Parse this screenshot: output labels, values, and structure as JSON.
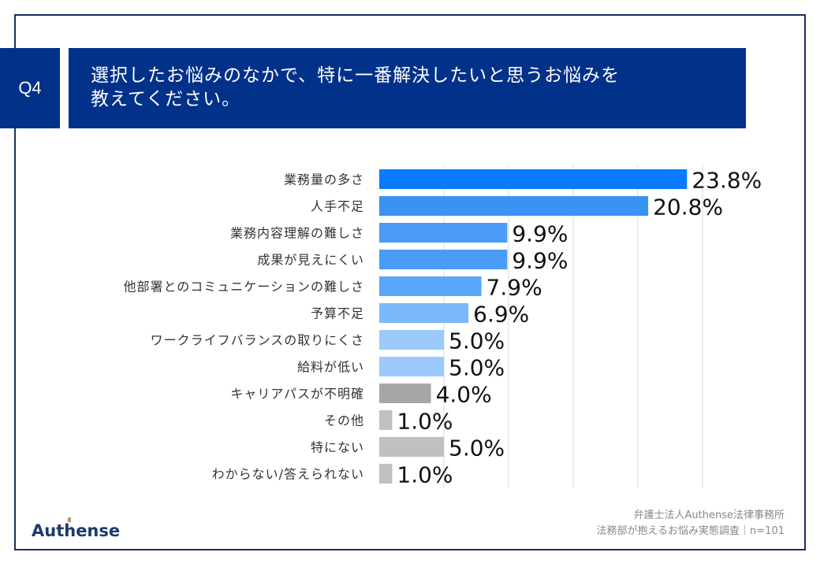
{
  "header": {
    "question_number": "Q4",
    "question_text_line1": "選択したお悩みのなかで、特に一番解決したいと思うお悩みを",
    "question_text_line2": "教えてください。"
  },
  "chart_data": {
    "type": "bar",
    "orientation": "horizontal",
    "categories": [
      "業務量の多さ",
      "人手不足",
      "業務内容理解の難しさ",
      "成果が見えにくい",
      "他部署とのコミュニケーションの難しさ",
      "予算不足",
      "ワークライフバランスの取りにくさ",
      "給料が低い",
      "キャリアパスが不明確",
      "その他",
      "特にない",
      "わからない/答えられない"
    ],
    "values": [
      23.8,
      20.8,
      9.9,
      9.9,
      7.9,
      6.9,
      5.0,
      5.0,
      4.0,
      1.0,
      5.0,
      1.0
    ],
    "data_labels": [
      "23.8%",
      "20.8%",
      "9.9%",
      "9.9%",
      "7.9%",
      "6.9%",
      "5.0%",
      "5.0%",
      "4.0%",
      "1.0%",
      "5.0%",
      "1.0%"
    ],
    "colors": [
      "#0a7aff",
      "#3a92f5",
      "#4a9cf7",
      "#4a9cf7",
      "#5aa6f7",
      "#7ab8fa",
      "#9ccafc",
      "#9ccafc",
      "#a6a6a6",
      "#c0c0c0",
      "#c0c0c0",
      "#c0c0c0"
    ],
    "xlim": [
      0,
      25
    ],
    "grid": true,
    "title": "",
    "xlabel": "",
    "ylabel": ""
  },
  "footer": {
    "source_line1": "弁護士法人Authense法律事務所",
    "source_line2": "法務部が抱えるお悩み実態調査｜n=101",
    "logo_text": "Authense"
  }
}
